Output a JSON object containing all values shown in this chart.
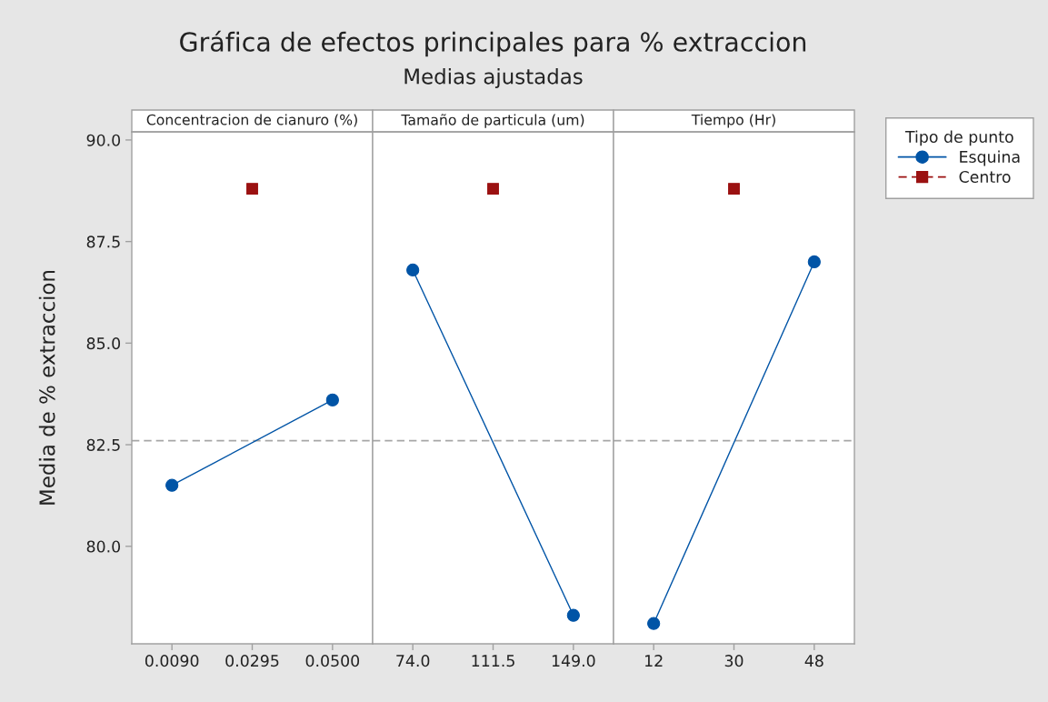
{
  "chart_data": [
    {
      "type": "line",
      "xlabel": "Concentracion de cianuro (%)",
      "ylabel": "Media de % extraccion",
      "series": [
        {
          "color": "#0054a6",
          "marker": "circle",
          "line_style": "solid",
          "x": [
            0.009,
            0.05
          ],
          "values": [
            81.5,
            83.6
          ]
        },
        {
          "color": "#9b1111",
          "marker": "square",
          "line_style": "dashed",
          "x": [
            0.0295
          ],
          "values": [
            88.8
          ]
        }
      ],
      "xlim": [
        -0.00125,
        0.06025
      ],
      "xticks": [
        {
          "value": 0.009,
          "label": "0.0090"
        },
        {
          "value": 0.0295,
          "label": "0.0295"
        },
        {
          "value": 0.05,
          "label": "0.0500"
        }
      ],
      "ylim": [
        77.6,
        90.2
      ],
      "yticks": [
        {
          "value": 80,
          "label": "80.0"
        },
        82.5,
        {
          "value": 85,
          "label": "85.0"
        },
        87.5,
        {
          "value": 90,
          "label": "90.0"
        }
      ],
      "ref_lines": [
        {
          "axis": "y",
          "value": 82.6,
          "color": "#a6a6a6",
          "line_style": "dashed"
        }
      ]
    },
    {
      "type": "line",
      "title": "Gráfica de efectos principales para % extraccion",
      "subtitle": "Medias ajustadas",
      "xlabel": "Tamaño de particula (um)",
      "series": [
        {
          "color": "#0054a6",
          "marker": "circle",
          "line_style": "solid",
          "x": [
            74,
            149
          ],
          "values": [
            86.8,
            78.3
          ]
        },
        {
          "color": "#9b1111",
          "marker": "square",
          "line_style": "dashed",
          "x": [
            111.5
          ],
          "values": [
            88.8
          ]
        }
      ],
      "xlim": [
        55.25,
        167.75
      ],
      "xticks": [
        {
          "value": 74,
          "label": "74.0"
        },
        111.5,
        {
          "value": 149,
          "label": "149.0"
        }
      ],
      "ylim": [
        77.6,
        90.2
      ],
      "tick_labels": "x",
      "ref_lines": [
        {
          "axis": "y",
          "value": 82.6,
          "color": "#a6a6a6",
          "line_style": "dashed"
        }
      ]
    },
    {
      "type": "line",
      "xlabel": "Tiempo (Hr)",
      "legend": "right",
      "legend_title": "Tipo de punto",
      "series": [
        {
          "name": "Esquina",
          "color": "#0054a6",
          "marker": "circle",
          "line_style": "solid",
          "x": [
            12,
            48
          ],
          "values": [
            78.1,
            87.0
          ]
        },
        {
          "name": "Centro",
          "color": "#9b1111",
          "marker": "square",
          "line_style": "dashed",
          "x": [
            30
          ],
          "values": [
            88.8
          ]
        }
      ],
      "xlim": [
        3,
        57
      ],
      "xticks": [
        12,
        30,
        48
      ],
      "ylim": [
        77.6,
        90.2
      ],
      "tick_labels": "x",
      "ref_lines": [
        {
          "axis": "y",
          "value": 82.6,
          "color": "#a6a6a6",
          "line_style": "dashed"
        }
      ]
    }
  ]
}
